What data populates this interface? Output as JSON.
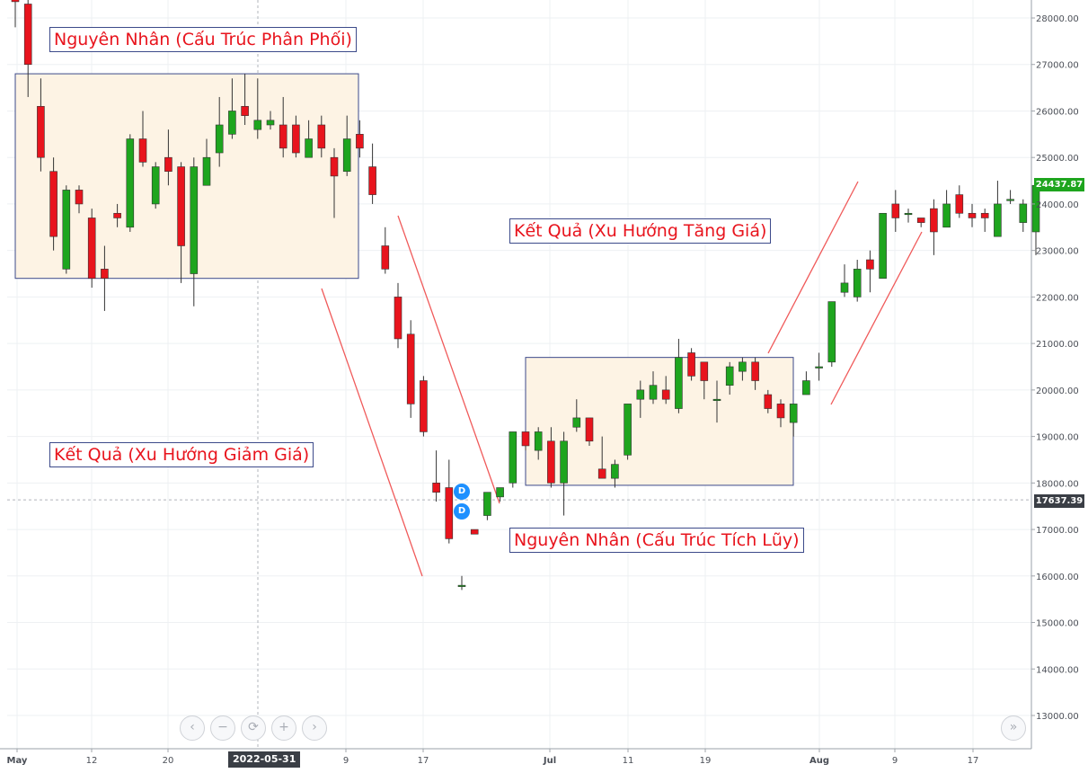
{
  "chart_data": {
    "type": "candlestick",
    "title": "",
    "xlabel": "",
    "ylabel": "",
    "ylim": [
      12200,
      28350
    ],
    "y_ticks": [
      "28000.00",
      "27000.00",
      "26000.00",
      "25000.00",
      "24000.00",
      "23000.00",
      "22000.00",
      "21000.00",
      "20000.00",
      "19000.00",
      "18000.00",
      "17000.00",
      "16000.00",
      "15000.00",
      "14000.00",
      "13000.00"
    ],
    "x_tick_labels": [
      "May",
      "12",
      "20",
      "9",
      "17",
      "Jul",
      "11",
      "19",
      "Aug",
      "9",
      "17"
    ],
    "grid": true,
    "last_price": "24437.87",
    "crosshair_price": "17637.39",
    "crosshair_date": "2022-05-31",
    "candles": [
      [
        28400,
        28350,
        27800,
        28600
      ],
      [
        28300,
        27000,
        26300,
        28600
      ],
      [
        26100,
        25000,
        24700,
        26700
      ],
      [
        24700,
        23300,
        23000,
        25000
      ],
      [
        22600,
        24300,
        22500,
        24400
      ],
      [
        24300,
        24000,
        23800,
        24400
      ],
      [
        23700,
        22400,
        22200,
        23900
      ],
      [
        22600,
        22400,
        21700,
        23100
      ],
      [
        23800,
        23700,
        23500,
        24000
      ],
      [
        23500,
        25400,
        23400,
        25500
      ],
      [
        25400,
        24900,
        24800,
        26000
      ],
      [
        24000,
        24800,
        23900,
        24900
      ],
      [
        25000,
        24700,
        24400,
        25600
      ],
      [
        24800,
        23100,
        22300,
        24900
      ],
      [
        22500,
        24800,
        21800,
        25000
      ],
      [
        24400,
        25000,
        24400,
        25400
      ],
      [
        25100,
        25700,
        24800,
        26300
      ],
      [
        25500,
        26000,
        25400,
        26700
      ],
      [
        26100,
        25900,
        25700,
        26800
      ],
      [
        25600,
        25800,
        25400,
        26700
      ],
      [
        25700,
        25800,
        25600,
        26000
      ],
      [
        25700,
        25200,
        25000,
        26300
      ],
      [
        25700,
        25100,
        25000,
        25900
      ],
      [
        25000,
        25400,
        25100,
        25800
      ],
      [
        25700,
        25200,
        25000,
        25900
      ],
      [
        25000,
        24600,
        23700,
        25200
      ],
      [
        24700,
        25400,
        24600,
        25900
      ],
      [
        25500,
        25200,
        25000,
        25800
      ],
      [
        24800,
        24200,
        24000,
        25300
      ],
      [
        23100,
        22600,
        22500,
        23500
      ],
      [
        22000,
        21100,
        20900,
        22300
      ],
      [
        21200,
        19700,
        19400,
        21500
      ],
      [
        20200,
        19100,
        19000,
        20300
      ],
      [
        18000,
        17800,
        17600,
        18700
      ],
      [
        17900,
        16800,
        16700,
        18500
      ],
      [
        15800,
        15800,
        15700,
        16000
      ],
      [
        17000,
        16900,
        16900,
        17000
      ],
      [
        17300,
        17800,
        17200,
        17800
      ],
      [
        17700,
        17900,
        17600,
        17900
      ],
      [
        18000,
        19100,
        17900,
        19100
      ],
      [
        19100,
        18800,
        18700,
        19100
      ],
      [
        18700,
        19100,
        18500,
        19200
      ],
      [
        18900,
        18000,
        17900,
        19200
      ],
      [
        18000,
        18900,
        17300,
        19100
      ],
      [
        19200,
        19400,
        19100,
        19800
      ],
      [
        19400,
        18900,
        18800,
        19400
      ],
      [
        18300,
        18100,
        18100,
        19000
      ],
      [
        18100,
        18400,
        17900,
        18500
      ],
      [
        18600,
        19700,
        18500,
        19700
      ],
      [
        19800,
        20000,
        19400,
        20200
      ],
      [
        19800,
        20100,
        19700,
        20400
      ],
      [
        20000,
        19800,
        19700,
        20300
      ],
      [
        19600,
        20700,
        19500,
        21100
      ],
      [
        20800,
        20300,
        20200,
        20900
      ],
      [
        20600,
        20200,
        19800,
        20600
      ],
      [
        19800,
        19800,
        19300,
        20200
      ],
      [
        20100,
        20500,
        19900,
        20600
      ],
      [
        20400,
        20600,
        20200,
        20700
      ],
      [
        20600,
        20200,
        20000,
        20700
      ],
      [
        19900,
        19600,
        19500,
        20000
      ],
      [
        19700,
        19400,
        19200,
        19800
      ],
      [
        19300,
        19700,
        19000,
        19700
      ],
      [
        19900,
        20200,
        19900,
        20400
      ],
      [
        20500,
        20500,
        20200,
        20800
      ],
      [
        20600,
        21900,
        20500,
        21900
      ],
      [
        22100,
        22300,
        22000,
        22700
      ],
      [
        22000,
        22600,
        21900,
        22800
      ],
      [
        22800,
        22600,
        22100,
        23000
      ],
      [
        22400,
        23800,
        22400,
        23800
      ],
      [
        24000,
        23700,
        23400,
        24300
      ],
      [
        23800,
        23800,
        23600,
        23900
      ],
      [
        23700,
        23600,
        23500,
        23600
      ],
      [
        23900,
        23400,
        22900,
        24100
      ],
      [
        23500,
        24000,
        23500,
        24300
      ],
      [
        24200,
        23800,
        23700,
        24400
      ],
      [
        23800,
        23700,
        23500,
        24000
      ],
      [
        23800,
        23700,
        23400,
        23900
      ],
      [
        23300,
        24000,
        23400,
        24500
      ],
      [
        24100,
        24100,
        24000,
        24300
      ],
      [
        23600,
        24000,
        23400,
        24100
      ],
      [
        23400,
        24400,
        22900,
        24500
      ]
    ]
  },
  "annotations": {
    "dist_cause": "Nguyên Nhân (Cấu Trúc Phân Phối)",
    "down_result": "Kết Quả (Xu Hướng Giảm Giá)",
    "up_result": "Kết Quả (Xu Hướng Tăng Giá)",
    "acc_cause": "Nguyên Nhân (Cấu Trúc Tích Lũy)"
  },
  "markers": [
    "D",
    "D"
  ],
  "nav": {
    "prev": "‹",
    "zoom_out": "−",
    "reset": "⟳",
    "zoom_in": "+",
    "next": "›",
    "scroll_end": "»"
  },
  "colors": {
    "up": "#1ea51e",
    "down": "#e8141d",
    "annotation_text": "#e8141d",
    "box_fill": "#fdf3e4",
    "box_border": "#3c4a8a",
    "trend_line": "#f05a5a"
  }
}
